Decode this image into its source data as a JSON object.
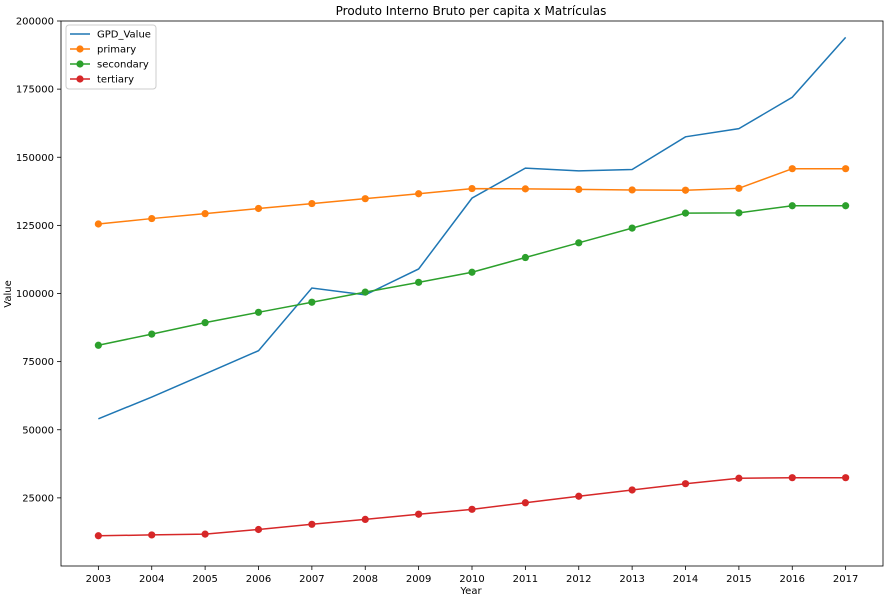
{
  "chart_data": {
    "type": "line",
    "title": "Produto Interno Bruto per capita x Matrículas",
    "xlabel": "Year",
    "ylabel": "Value",
    "x": [
      2003,
      2004,
      2005,
      2006,
      2007,
      2008,
      2009,
      2010,
      2011,
      2012,
      2013,
      2014,
      2015,
      2016,
      2017
    ],
    "xlim": [
      2002.3,
      2017.7
    ],
    "ylim": [
      0,
      200000
    ],
    "yticks": [
      25000,
      50000,
      75000,
      100000,
      125000,
      150000,
      175000,
      200000
    ],
    "grid": false,
    "legend": "top-left",
    "series": [
      {
        "name": "GPD_Value",
        "color": "#1f77b4",
        "marker": false,
        "values": [
          54000,
          62000,
          70500,
          79000,
          102000,
          99500,
          109000,
          135000,
          146000,
          145000,
          145500,
          157500,
          160500,
          172000,
          194000
        ]
      },
      {
        "name": "primary",
        "color": "#ff7f0e",
        "marker": true,
        "values": [
          125500,
          127500,
          129300,
          131200,
          133000,
          134800,
          136600,
          138500,
          138400,
          138200,
          138000,
          137900,
          138600,
          145800,
          145800
        ]
      },
      {
        "name": "secondary",
        "color": "#2ca02c",
        "marker": true,
        "values": [
          81000,
          85100,
          89300,
          93100,
          96800,
          100500,
          104100,
          107800,
          113200,
          118600,
          124000,
          129500,
          129600,
          132200,
          132200
        ]
      },
      {
        "name": "tertiary",
        "color": "#d62728",
        "marker": true,
        "values": [
          11100,
          11400,
          11700,
          13400,
          15300,
          17100,
          19000,
          20800,
          23200,
          25600,
          27900,
          30200,
          32200,
          32400,
          32400
        ]
      }
    ]
  }
}
